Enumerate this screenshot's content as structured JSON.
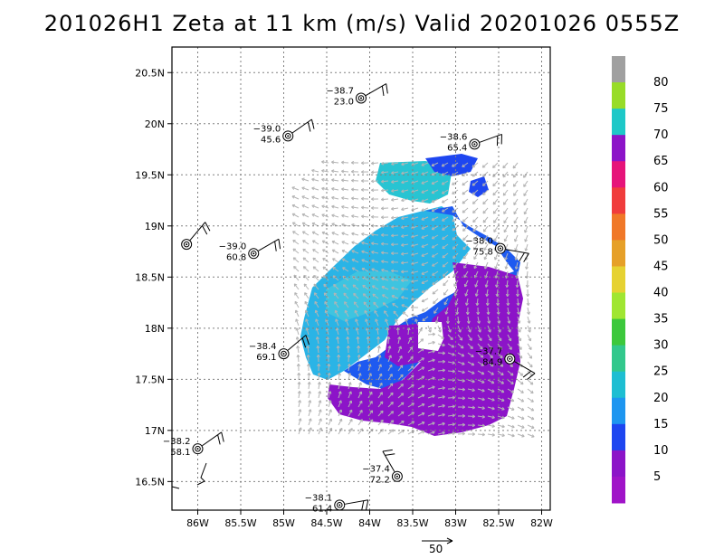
{
  "title": "201026H1 Zeta at 11 km (m/s) Valid 20201026 0555Z",
  "map": {
    "lat_labels": [
      "20.5N",
      "20N",
      "19.5N",
      "19N",
      "18.5N",
      "18N",
      "17.5N",
      "17N",
      "16.5N"
    ],
    "lon_labels": [
      "86W",
      "85.5W",
      "85W",
      "84.5W",
      "84W",
      "83.5W",
      "83W",
      "82.5W",
      "82W"
    ],
    "lat_values": [
      20.5,
      20.0,
      19.5,
      19.0,
      18.5,
      18.0,
      17.5,
      17.0,
      16.5
    ],
    "lon_values": [
      -86.0,
      -85.5,
      -85.0,
      -84.5,
      -84.0,
      -83.5,
      -83.0,
      -82.5,
      -82.0
    ],
    "extent": {
      "lon_min": -86.3,
      "lon_max": -81.9,
      "lat_min": 16.22,
      "lat_max": 20.75
    },
    "grid": true
  },
  "stations": [
    {
      "top": "−38.7",
      "bottom": "23.0",
      "lon": -84.1,
      "lat": 20.25,
      "barb_dir": 60
    },
    {
      "top": "−39.0",
      "bottom": "45.6",
      "lon": -84.95,
      "lat": 19.88,
      "barb_dir": 55
    },
    {
      "top": "−38.6",
      "bottom": "65.4",
      "lon": -82.78,
      "lat": 19.8,
      "barb_dir": 70
    },
    {
      "top": "",
      "bottom": "",
      "lon": -86.13,
      "lat": 18.82,
      "barb_dir": 40
    },
    {
      "top": "−39.0",
      "bottom": "60.8",
      "lon": -85.35,
      "lat": 18.73,
      "barb_dir": 60
    },
    {
      "top": "−38.0",
      "bottom": "75.8",
      "lon": -82.48,
      "lat": 18.78,
      "barb_dir": 100
    },
    {
      "top": "−38.4",
      "bottom": "69.1",
      "lon": -85.0,
      "lat": 17.75,
      "barb_dir": 50
    },
    {
      "top": "−37.7",
      "bottom": "84.9",
      "lon": -82.37,
      "lat": 17.7,
      "barb_dir": 120
    },
    {
      "top": "−38.2",
      "bottom": "58.1",
      "lon": -86.0,
      "lat": 16.82,
      "barb_dir": 55
    },
    {
      "top": "−37.4",
      "bottom": "72.2",
      "lon": -83.68,
      "lat": 16.55,
      "barb_dir": 330
    },
    {
      "top": "−38.1",
      "bottom": "61.4",
      "lon": -84.35,
      "lat": 16.27,
      "barb_dir": 80
    }
  ],
  "colorbar": {
    "labels": [
      "80",
      "75",
      "70",
      "65",
      "60",
      "55",
      "50",
      "45",
      "40",
      "35",
      "30",
      "25",
      "20",
      "15",
      "10",
      "5"
    ],
    "colors": [
      "#a0a0a0",
      "#98dc28",
      "#1ec8c8",
      "#8c14c8",
      "#e6147a",
      "#f03c3c",
      "#f07828",
      "#e6a028",
      "#e6d232",
      "#a0e632",
      "#3cc83c",
      "#32c88c",
      "#1ebed2",
      "#1e96f0",
      "#1e46f0",
      "#8c14c8",
      "#a014c8"
    ]
  },
  "reference_vector": {
    "label": "50"
  }
}
